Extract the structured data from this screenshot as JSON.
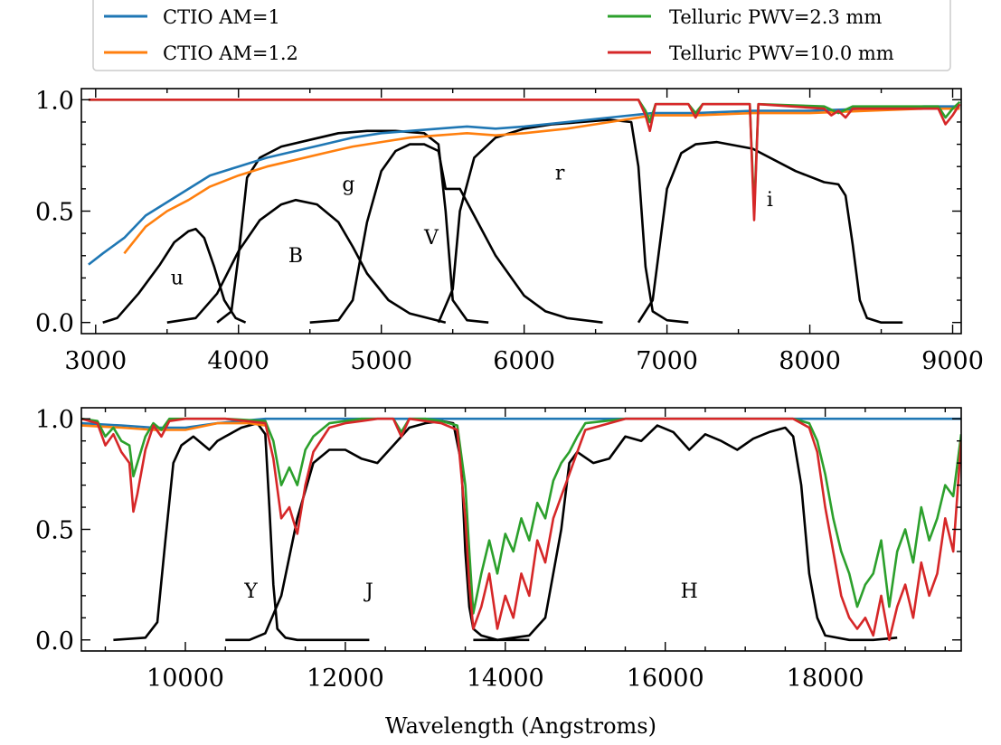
{
  "chart_data": [
    {
      "type": "line",
      "panel": "top",
      "xlim": [
        2900,
        9060
      ],
      "ylim": [
        -0.05,
        1.05
      ],
      "x_ticks": [
        3000,
        4000,
        5000,
        6000,
        7000,
        8000,
        9000
      ],
      "x_tick_labels": [
        "3000",
        "4000",
        "5000",
        "6000",
        "7000",
        "8000",
        "9000"
      ],
      "y_ticks": [
        0.0,
        0.5,
        1.0
      ],
      "y_tick_labels": [
        "0.0",
        "0.5",
        "1.0"
      ],
      "series": [
        {
          "name": "CTIO AM=1",
          "color": "#1f77b4",
          "x": [
            2950,
            3050,
            3200,
            3350,
            3500,
            3650,
            3800,
            4000,
            4200,
            4400,
            4600,
            4800,
            5000,
            5200,
            5400,
            5600,
            5800,
            6000,
            6300,
            6600,
            6900,
            7200,
            7600,
            8000,
            8400,
            8800,
            9050
          ],
          "y": [
            0.26,
            0.31,
            0.38,
            0.48,
            0.54,
            0.6,
            0.66,
            0.7,
            0.74,
            0.77,
            0.8,
            0.83,
            0.85,
            0.86,
            0.87,
            0.88,
            0.87,
            0.88,
            0.9,
            0.92,
            0.94,
            0.94,
            0.95,
            0.95,
            0.96,
            0.97,
            0.97
          ]
        },
        {
          "name": "CTIO AM=1.2",
          "color": "#ff7f0e",
          "x": [
            3200,
            3350,
            3500,
            3650,
            3800,
            4000,
            4200,
            4400,
            4600,
            4800,
            5000,
            5200,
            5400,
            5600,
            5800,
            6000,
            6300,
            6600,
            6900,
            7200,
            7600,
            8000,
            8400,
            8800,
            9050
          ],
          "y": [
            0.31,
            0.43,
            0.5,
            0.55,
            0.61,
            0.66,
            0.7,
            0.73,
            0.76,
            0.79,
            0.81,
            0.83,
            0.84,
            0.85,
            0.84,
            0.85,
            0.87,
            0.9,
            0.93,
            0.93,
            0.94,
            0.94,
            0.95,
            0.96,
            0.96
          ]
        },
        {
          "name": "Telluric PWV=2.3 mm",
          "color": "#2ca02c",
          "x": [
            2950,
            6800,
            6850,
            6880,
            6920,
            7150,
            7200,
            7250,
            7580,
            7610,
            7640,
            8100,
            8200,
            8300,
            8900,
            8950,
            9000,
            9050
          ],
          "y": [
            1.0,
            1.0,
            0.95,
            0.9,
            0.98,
            0.98,
            0.94,
            0.98,
            0.98,
            0.5,
            0.98,
            0.97,
            0.94,
            0.97,
            0.97,
            0.92,
            0.96,
            0.99
          ]
        },
        {
          "name": "Telluric PWV=10.0 mm",
          "color": "#d62728",
          "x": [
            2950,
            6800,
            6850,
            6880,
            6920,
            7150,
            7200,
            7250,
            7580,
            7610,
            7640,
            8100,
            8150,
            8200,
            8250,
            8300,
            8900,
            8950,
            9000,
            9050
          ],
          "y": [
            1.0,
            1.0,
            0.93,
            0.86,
            0.98,
            0.98,
            0.92,
            0.98,
            0.98,
            0.46,
            0.98,
            0.96,
            0.93,
            0.95,
            0.92,
            0.96,
            0.96,
            0.89,
            0.93,
            0.98
          ]
        }
      ],
      "filters": [
        {
          "label": "u",
          "label_x": 3570,
          "label_y": 0.2,
          "x": [
            3050,
            3150,
            3300,
            3450,
            3550,
            3650,
            3700,
            3760,
            3830,
            3900,
            3980,
            4050
          ],
          "y": [
            0.0,
            0.02,
            0.13,
            0.26,
            0.36,
            0.41,
            0.42,
            0.38,
            0.25,
            0.1,
            0.02,
            0.0
          ]
        },
        {
          "label": "B",
          "label_x": 4400,
          "label_y": 0.3,
          "x": [
            3500,
            3700,
            3850,
            4000,
            4150,
            4300,
            4400,
            4550,
            4700,
            4800,
            4900,
            5050,
            5200,
            5450
          ],
          "y": [
            0.0,
            0.02,
            0.13,
            0.32,
            0.46,
            0.53,
            0.55,
            0.53,
            0.45,
            0.34,
            0.22,
            0.1,
            0.04,
            0.0
          ]
        },
        {
          "label": "g",
          "label_x": 4770,
          "label_y": 0.62,
          "x": [
            3850,
            3950,
            4000,
            4060,
            4150,
            4300,
            4500,
            4700,
            4900,
            5100,
            5300,
            5400,
            5450,
            5500,
            5600,
            5750
          ],
          "y": [
            0.0,
            0.05,
            0.3,
            0.65,
            0.74,
            0.79,
            0.82,
            0.85,
            0.86,
            0.86,
            0.85,
            0.8,
            0.5,
            0.1,
            0.01,
            0.0
          ]
        },
        {
          "label": "V",
          "label_x": 5350,
          "label_y": 0.38,
          "x": [
            4500,
            4700,
            4800,
            4900,
            5000,
            5100,
            5200,
            5300,
            5400,
            5450,
            5550,
            5650,
            5800,
            6000,
            6150,
            6300,
            6550
          ],
          "y": [
            0.0,
            0.01,
            0.1,
            0.45,
            0.68,
            0.77,
            0.8,
            0.8,
            0.77,
            0.6,
            0.6,
            0.48,
            0.3,
            0.12,
            0.05,
            0.02,
            0.0
          ]
        },
        {
          "label": "r",
          "label_x": 6250,
          "label_y": 0.67,
          "x": [
            5400,
            5500,
            5550,
            5650,
            5800,
            6000,
            6200,
            6400,
            6600,
            6750,
            6800,
            6850,
            6900,
            7000,
            7150
          ],
          "y": [
            0.0,
            0.15,
            0.5,
            0.74,
            0.83,
            0.87,
            0.89,
            0.9,
            0.91,
            0.9,
            0.7,
            0.25,
            0.05,
            0.01,
            0.0
          ]
        },
        {
          "label": "i",
          "label_x": 7720,
          "label_y": 0.55,
          "x": [
            6800,
            6900,
            7000,
            7100,
            7200,
            7350,
            7600,
            7900,
            8100,
            8200,
            8250,
            8300,
            8350,
            8400,
            8500,
            8650
          ],
          "y": [
            0.0,
            0.1,
            0.6,
            0.76,
            0.8,
            0.81,
            0.78,
            0.68,
            0.63,
            0.62,
            0.57,
            0.35,
            0.1,
            0.02,
            0.0,
            0.0
          ]
        }
      ]
    },
    {
      "type": "line",
      "panel": "bottom",
      "xlim": [
        8700,
        19700
      ],
      "ylim": [
        -0.05,
        1.05
      ],
      "xlabel": "Wavelength (Angstroms)",
      "x_ticks": [
        10000,
        12000,
        14000,
        16000,
        18000
      ],
      "x_tick_labels": [
        "10000",
        "12000",
        "14000",
        "16000",
        "18000"
      ],
      "y_ticks": [
        0.0,
        0.5,
        1.0
      ],
      "y_tick_labels": [
        "0.0",
        "0.5",
        "1.0"
      ],
      "series": [
        {
          "name": "CTIO AM=1",
          "color": "#1f77b4",
          "x": [
            8700,
            9200,
            9600,
            10000,
            10400,
            11000,
            19700
          ],
          "y": [
            0.98,
            0.97,
            0.96,
            0.96,
            0.98,
            1.0,
            1.0
          ]
        },
        {
          "name": "CTIO AM=1.2",
          "color": "#ff7f0e",
          "x": [
            8700,
            9200,
            9600,
            10000,
            10400,
            10800,
            11000
          ],
          "y": [
            0.97,
            0.96,
            0.95,
            0.95,
            0.98,
            0.98,
            0.97
          ]
        },
        {
          "name": "Telluric PWV=2.3 mm",
          "color": "#2ca02c",
          "x": [
            8700,
            8900,
            9000,
            9100,
            9200,
            9300,
            9350,
            9400,
            9500,
            9600,
            9700,
            9800,
            10000,
            10500,
            11000,
            11100,
            11200,
            11300,
            11400,
            11500,
            11600,
            11800,
            12000,
            12200,
            12400,
            12600,
            12700,
            12800,
            13000,
            13200,
            13400,
            13500,
            13550,
            13600,
            13700,
            13800,
            13900,
            14000,
            14100,
            14200,
            14300,
            14400,
            14500,
            14600,
            14700,
            14800,
            14900,
            15000,
            15500,
            16000,
            16500,
            17000,
            17300,
            17600,
            17800,
            17900,
            18000,
            18100,
            18200,
            18300,
            18400,
            18500,
            18600,
            18700,
            18800,
            18900,
            19000,
            19100,
            19200,
            19300,
            19400,
            19500,
            19600,
            19700
          ],
          "y": [
            1.0,
            0.99,
            0.92,
            0.96,
            0.9,
            0.88,
            0.74,
            0.8,
            0.92,
            0.98,
            0.95,
            1.0,
            1.0,
            1.0,
            0.99,
            0.9,
            0.7,
            0.78,
            0.7,
            0.86,
            0.92,
            0.98,
            0.99,
            1.0,
            1.0,
            1.0,
            0.94,
            1.0,
            1.0,
            0.99,
            0.97,
            0.7,
            0.4,
            0.12,
            0.3,
            0.45,
            0.3,
            0.48,
            0.4,
            0.55,
            0.45,
            0.62,
            0.55,
            0.72,
            0.8,
            0.85,
            0.92,
            0.98,
            1.0,
            1.0,
            1.0,
            1.0,
            1.0,
            1.0,
            0.98,
            0.9,
            0.75,
            0.55,
            0.4,
            0.3,
            0.15,
            0.25,
            0.3,
            0.45,
            0.15,
            0.4,
            0.5,
            0.35,
            0.6,
            0.45,
            0.55,
            0.7,
            0.65,
            0.93
          ]
        },
        {
          "name": "Telluric PWV=10.0 mm",
          "color": "#d62728",
          "x": [
            8700,
            8900,
            9000,
            9100,
            9200,
            9300,
            9350,
            9400,
            9500,
            9600,
            9700,
            9800,
            10000,
            10500,
            11000,
            11100,
            11200,
            11300,
            11400,
            11500,
            11600,
            11800,
            12000,
            12200,
            12400,
            12600,
            12700,
            12800,
            13000,
            13200,
            13400,
            13500,
            13550,
            13600,
            13700,
            13800,
            13900,
            14000,
            14100,
            14200,
            14300,
            14400,
            14500,
            14600,
            14700,
            14800,
            14900,
            15000,
            15500,
            16000,
            16500,
            17000,
            17300,
            17600,
            17800,
            17900,
            18000,
            18100,
            18200,
            18300,
            18400,
            18500,
            18600,
            18700,
            18800,
            18900,
            19000,
            19100,
            19200,
            19300,
            19400,
            19500,
            19600,
            19700
          ],
          "y": [
            1.0,
            0.98,
            0.88,
            0.93,
            0.85,
            0.8,
            0.58,
            0.66,
            0.86,
            0.97,
            0.92,
            0.99,
            1.0,
            1.0,
            0.98,
            0.82,
            0.55,
            0.6,
            0.48,
            0.7,
            0.85,
            0.96,
            0.98,
            0.99,
            1.0,
            1.0,
            0.92,
            1.0,
            0.99,
            0.98,
            0.95,
            0.55,
            0.25,
            0.05,
            0.15,
            0.3,
            0.05,
            0.2,
            0.1,
            0.3,
            0.2,
            0.45,
            0.35,
            0.55,
            0.65,
            0.75,
            0.85,
            0.95,
            1.0,
            1.0,
            1.0,
            1.0,
            1.0,
            1.0,
            0.96,
            0.85,
            0.6,
            0.4,
            0.2,
            0.1,
            0.05,
            0.1,
            0.02,
            0.2,
            0.0,
            0.15,
            0.25,
            0.1,
            0.35,
            0.2,
            0.3,
            0.55,
            0.4,
            0.9
          ]
        }
      ],
      "filters": [
        {
          "label": "Y",
          "label_x": 10820,
          "label_y": 0.22,
          "x": [
            9100,
            9500,
            9650,
            9750,
            9850,
            9950,
            10100,
            10300,
            10400,
            10500,
            10700,
            10900,
            11000,
            11050,
            11100,
            11150,
            11250,
            11400,
            11700,
            12300
          ],
          "y": [
            0.0,
            0.01,
            0.08,
            0.45,
            0.8,
            0.88,
            0.92,
            0.86,
            0.9,
            0.92,
            0.96,
            0.98,
            0.93,
            0.6,
            0.25,
            0.05,
            0.01,
            0.0,
            0.0,
            0.0
          ]
        },
        {
          "label": "J",
          "label_x": 12300,
          "label_y": 0.22,
          "x": [
            10500,
            10800,
            11000,
            11200,
            11400,
            11600,
            11800,
            12000,
            12200,
            12400,
            12600,
            12800,
            13000,
            13200,
            13350,
            13450,
            13500,
            13550,
            13600,
            13700,
            13900,
            14300
          ],
          "y": [
            0.0,
            0.0,
            0.03,
            0.2,
            0.55,
            0.8,
            0.86,
            0.86,
            0.82,
            0.8,
            0.88,
            0.96,
            0.98,
            0.99,
            0.98,
            0.8,
            0.4,
            0.15,
            0.05,
            0.02,
            0.0,
            0.0
          ]
        },
        {
          "label": "H",
          "label_x": 16300,
          "label_y": 0.22,
          "x": [
            13600,
            13900,
            14300,
            14500,
            14700,
            14800,
            14900,
            15100,
            15300,
            15500,
            15700,
            15900,
            16100,
            16300,
            16500,
            16700,
            16900,
            17100,
            17300,
            17500,
            17600,
            17700,
            17800,
            17900,
            18000,
            18300,
            18600,
            18900
          ],
          "y": [
            0.0,
            0.0,
            0.02,
            0.1,
            0.5,
            0.8,
            0.85,
            0.8,
            0.82,
            0.92,
            0.9,
            0.97,
            0.94,
            0.86,
            0.93,
            0.9,
            0.86,
            0.91,
            0.94,
            0.96,
            0.92,
            0.7,
            0.3,
            0.1,
            0.02,
            0.0,
            0.0,
            0.01
          ]
        }
      ]
    }
  ]
}
